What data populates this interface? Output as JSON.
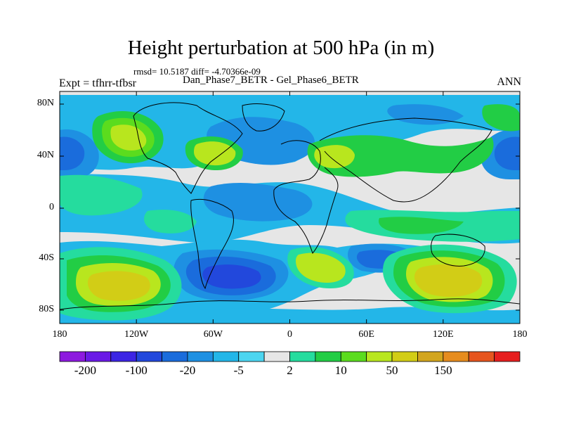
{
  "title": "Height perturbation at 500 hPa (in m)",
  "stats": "rmsd= 10.5187 diff= -4.70366e-09",
  "left_label": "Expt = tfhrr-tfbsr",
  "center_label": "Dan_Phase7_BETR - Gel_Phase6_BETR",
  "right_label": "ANN",
  "lat_ticks": [
    "80N",
    "40N",
    "0",
    "40S",
    "80S"
  ],
  "lon_ticks": [
    "180",
    "120W",
    "60W",
    "0",
    "60E",
    "120E",
    "180"
  ],
  "colorbar": {
    "colors": [
      "#8d1adf",
      "#6a1ae6",
      "#3c25e4",
      "#2248dc",
      "#1a6cdc",
      "#1e90e2",
      "#23b6e8",
      "#4cd5f0",
      "#e6e6e6",
      "#25dc9e",
      "#22cd45",
      "#5bdc1e",
      "#b8e61e",
      "#d2cd16",
      "#d2a51e",
      "#e68c1e",
      "#e6551e",
      "#e61e1e"
    ],
    "labels": [
      "-200",
      "-100",
      "-20",
      "-5",
      "2",
      "10",
      "50",
      "150"
    ]
  },
  "map_layers": {
    "background": "#e6e6e6",
    "coastline_color": "#000000"
  }
}
